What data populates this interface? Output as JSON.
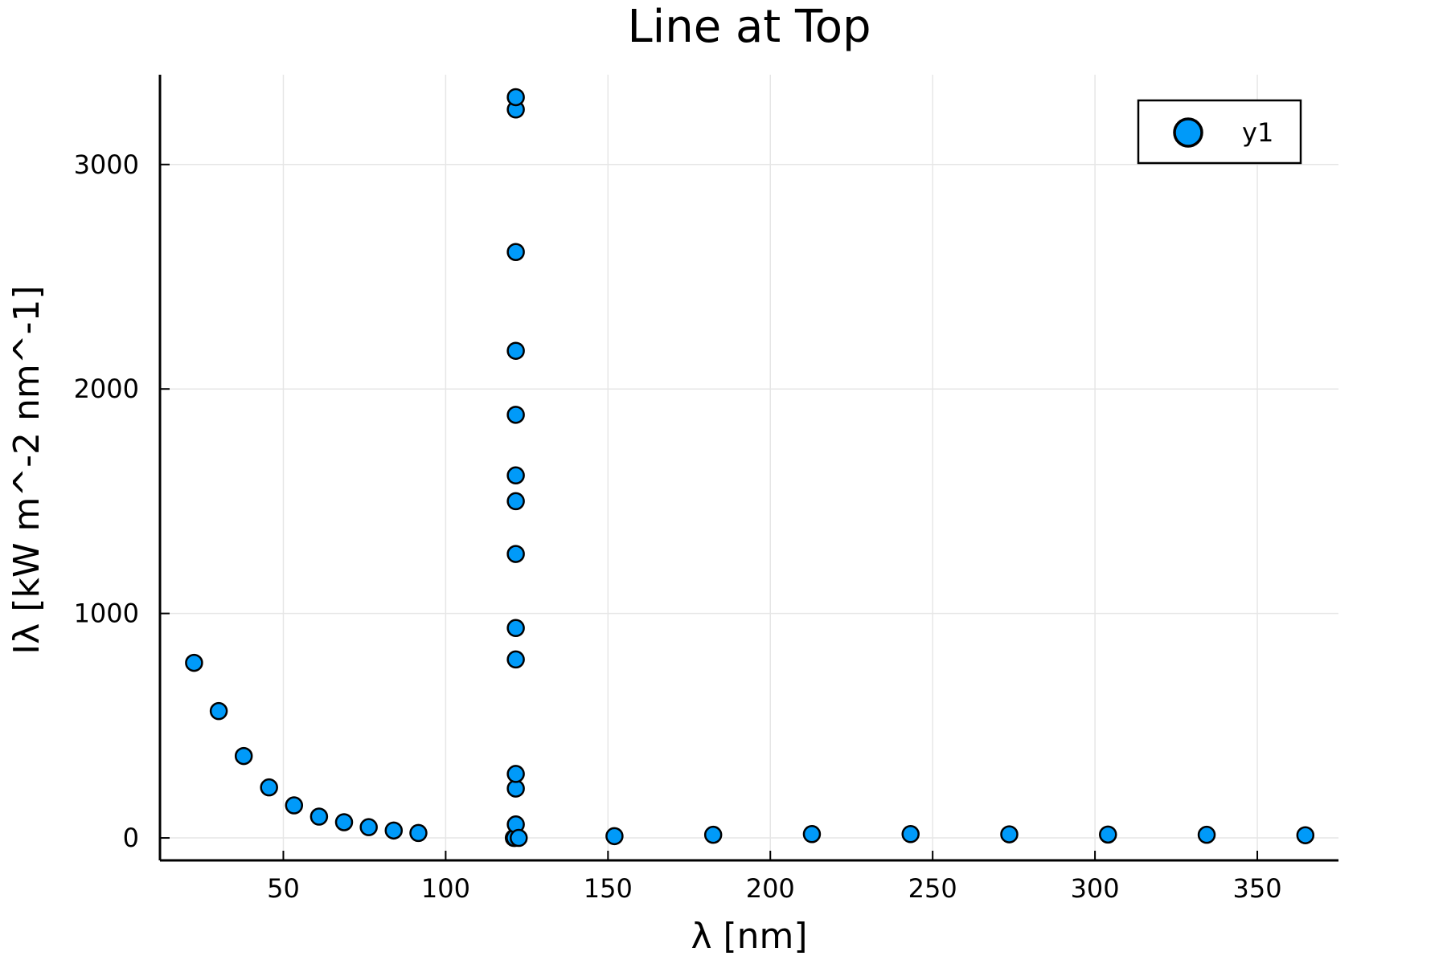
{
  "chart_data": {
    "type": "scatter",
    "title": "Line at Top",
    "xlabel": "λ [nm]",
    "ylabel": "Iλ [kW m^-2 nm^-1]",
    "xlim": [
      12,
      375
    ],
    "ylim": [
      -100,
      3400
    ],
    "x_ticks": [
      50,
      100,
      150,
      200,
      250,
      300,
      350
    ],
    "y_ticks": [
      0,
      1000,
      2000,
      3000
    ],
    "grid": true,
    "legend_position": "top-right",
    "colors": {
      "marker_fill": "#009af9",
      "marker_stroke": "#000000"
    },
    "series": [
      {
        "name": "y1",
        "points": [
          {
            "x": 22.5,
            "y": 780
          },
          {
            "x": 30.1,
            "y": 565
          },
          {
            "x": 37.8,
            "y": 365
          },
          {
            "x": 45.6,
            "y": 225
          },
          {
            "x": 53.3,
            "y": 145
          },
          {
            "x": 61.0,
            "y": 95
          },
          {
            "x": 68.7,
            "y": 70
          },
          {
            "x": 76.3,
            "y": 48
          },
          {
            "x": 84.0,
            "y": 33
          },
          {
            "x": 91.6,
            "y": 22
          },
          {
            "x": 121.0,
            "y": 0
          },
          {
            "x": 121.3,
            "y": 0
          },
          {
            "x": 121.6,
            "y": 60
          },
          {
            "x": 121.6,
            "y": 220
          },
          {
            "x": 121.6,
            "y": 285
          },
          {
            "x": 121.6,
            "y": 795
          },
          {
            "x": 121.6,
            "y": 935
          },
          {
            "x": 121.6,
            "y": 1265
          },
          {
            "x": 121.6,
            "y": 1500
          },
          {
            "x": 121.6,
            "y": 1615
          },
          {
            "x": 121.6,
            "y": 1885
          },
          {
            "x": 121.6,
            "y": 2170
          },
          {
            "x": 121.6,
            "y": 2610
          },
          {
            "x": 121.6,
            "y": 3245
          },
          {
            "x": 121.6,
            "y": 3300
          },
          {
            "x": 122.5,
            "y": 0
          },
          {
            "x": 152.0,
            "y": 8
          },
          {
            "x": 182.4,
            "y": 14
          },
          {
            "x": 212.8,
            "y": 17
          },
          {
            "x": 243.2,
            "y": 17
          },
          {
            "x": 273.6,
            "y": 16
          },
          {
            "x": 304.0,
            "y": 15
          },
          {
            "x": 334.4,
            "y": 14
          },
          {
            "x": 364.8,
            "y": 12
          }
        ]
      }
    ]
  }
}
